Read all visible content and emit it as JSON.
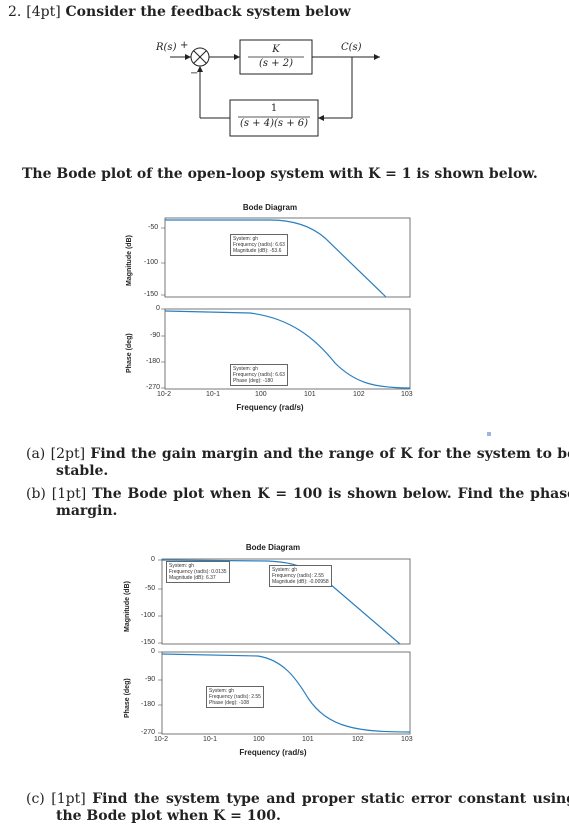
{
  "problem": {
    "number": "2.",
    "points": "[4pt]",
    "text": "Consider the feedback system below"
  },
  "block_diagram": {
    "input_label": "R(s)",
    "plus": "+",
    "minus": "−",
    "output_label": "C(s)",
    "forward_num": "K",
    "forward_den": "(s + 2)",
    "feedback_num": "1",
    "feedback_den": "(s + 4)(s + 6)"
  },
  "intro": "The Bode plot of the open-loop system with K = 1 is shown below.",
  "plot1": {
    "title": "Bode Diagram",
    "mag_ylabel": "Magnitude (dB)",
    "phase_ylabel": "Phase (deg)",
    "xlabel": "Frequency (rad/s)",
    "mag_ticks": [
      "-50",
      "-100",
      "-150"
    ],
    "phase_ticks": [
      "0",
      "-90",
      "-180",
      "-270"
    ],
    "x_ticks": [
      "10-2",
      "10-1",
      "100",
      "101",
      "102",
      "103"
    ],
    "dt_mag": [
      "System: gh",
      "Frequency (rad/s): 6.63",
      "Magnitude (dB): -53.6"
    ],
    "dt_phase": [
      "System: gh",
      "Frequency (rad/s): 6.63",
      "Phase (deg): -180"
    ]
  },
  "part_a": {
    "label": "(a)",
    "points": "[2pt]",
    "text": "Find the gain margin and the range of K for the system to be stable."
  },
  "part_b": {
    "label": "(b)",
    "points": "[1pt]",
    "text": "The Bode plot when K = 100 is shown below. Find the phase margin."
  },
  "plot2": {
    "title": "Bode Diagram",
    "mag_ylabel": "Magnitude (dB)",
    "phase_ylabel": "Phase (deg)",
    "xlabel": "Frequency (rad/s)",
    "mag_ticks": [
      "0",
      "-50",
      "-100",
      "-150"
    ],
    "phase_ticks": [
      "0",
      "-90",
      "-180",
      "-270"
    ],
    "x_ticks": [
      "10-2",
      "10-1",
      "100",
      "101",
      "102",
      "103"
    ],
    "dt_mag_left": [
      "System: gh",
      "Frequency (rad/s): 0.0135",
      "Magnitude (dB): 6.37"
    ],
    "dt_mag_right": [
      "System: gh",
      "Frequency (rad/s): 2.55",
      "Magnitude (dB): -0.00958"
    ],
    "dt_phase": [
      "System: gh",
      "Frequency (rad/s): 2.55",
      "Phase (deg): -108"
    ]
  },
  "part_c": {
    "label": "(c)",
    "points": "[1pt]",
    "text": "Find the system type and proper static error constant using the Bode plot when K = 100."
  },
  "chart_data": [
    {
      "type": "line",
      "title": "Bode Diagram",
      "xlabel": "Frequency (rad/s)",
      "xscale": "log",
      "xlim": [
        0.01,
        1000
      ],
      "panels": [
        {
          "ylabel": "Magnitude (dB)",
          "ylim": [
            -160,
            -40
          ],
          "series": [
            {
              "x": [
                0.01,
                0.1,
                1,
                2,
                3,
                6.63,
                10,
                30,
                100,
                300,
                1000
              ],
              "y": [
                -54,
                -54,
                -54.6,
                -56,
                -57,
                -53.6,
                -68,
                -95,
                -125,
                -154,
                -184
              ]
            }
          ]
        },
        {
          "ylabel": "Phase (deg)",
          "ylim": [
            -270,
            0
          ],
          "series": [
            {
              "x": [
                0.01,
                0.1,
                0.5,
                1,
                2,
                3,
                6.63,
                10,
                20,
                50,
                100,
                1000
              ],
              "y": [
                0,
                -3,
                -14,
                -27,
                -52,
                -78,
                -180,
                -206,
                -242,
                -262,
                -266,
                -270
              ]
            }
          ]
        }
      ]
    },
    {
      "type": "line",
      "title": "Bode Diagram",
      "xlabel": "Frequency (rad/s)",
      "xscale": "log",
      "xlim": [
        0.01,
        1000
      ],
      "panels": [
        {
          "ylabel": "Magnitude (dB)",
          "ylim": [
            -150,
            0
          ],
          "series": [
            {
              "x": [
                0.0135,
                0.1,
                1,
                2.55,
                5,
                10,
                30,
                100,
                300,
                1000
              ],
              "y": [
                6.37,
                6.3,
                5.5,
                -0.00958,
                -12,
                -28,
                -56,
                -86,
                -115,
                -144
              ]
            }
          ]
        },
        {
          "ylabel": "Phase (deg)",
          "ylim": [
            -270,
            0
          ],
          "series": [
            {
              "x": [
                0.01,
                0.1,
                0.5,
                1,
                2.55,
                5,
                10,
                30,
                100,
                1000
              ],
              "y": [
                0,
                -3,
                -16,
                -30,
                -108,
                -160,
                -206,
                -245,
                -262,
                -270
              ]
            }
          ]
        }
      ]
    }
  ]
}
